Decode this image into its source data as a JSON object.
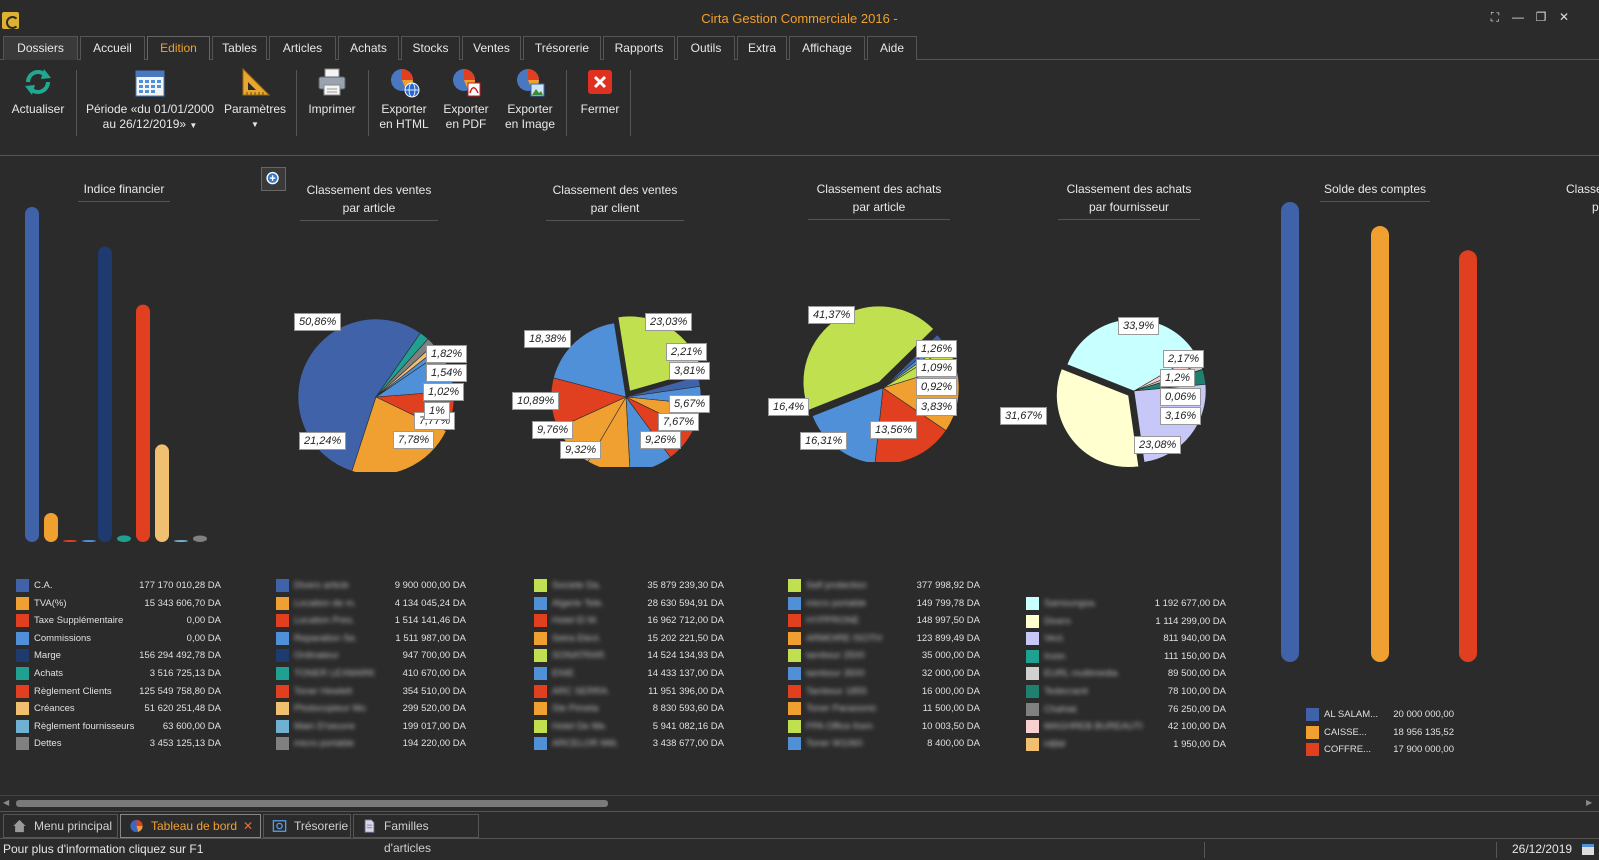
{
  "app": {
    "title": "Cirta Gestion Commerciale 2016 -",
    "window_buttons": [
      "⛶",
      "—",
      "❐",
      "✕"
    ]
  },
  "menu": {
    "tabs": [
      "Dossiers",
      "Accueil",
      "Edition",
      "Tables",
      "Articles",
      "Achats",
      "Stocks",
      "Ventes",
      "Trésorerie",
      "Rapports",
      "Outils",
      "Extra",
      "Affichage",
      "Aide"
    ],
    "active": "Edition"
  },
  "ribbon": {
    "actualiser": "Actualiser",
    "periode_1": "Période «du 01/01/2000",
    "periode_2": "au 26/12/2019»",
    "parametres": "Paramètres",
    "imprimer": "Imprimer",
    "export_html_1": "Exporter",
    "export_html_2": "en HTML",
    "export_pdf_1": "Exporter",
    "export_pdf_2": "en PDF",
    "export_img_1": "Exporter",
    "export_img_2": "en Image",
    "fermer": "Fermer"
  },
  "colors": {
    "blue": "#4062a8",
    "orange": "#f0a030",
    "red": "#e04020",
    "lightblue": "#5090d8",
    "navy": "#1e3a6e",
    "teal": "#20a090",
    "salmon": "#f0c070",
    "skyblue": "#70b0d0",
    "gray": "#808080",
    "lime": "#c0e050",
    "cyan": "#c8ffff",
    "cream": "#ffffd0",
    "lavender": "#c8c8f8",
    "pink": "#f8d0d0",
    "lightgray": "#d0d0d0",
    "darkteal": "#208070",
    "olive": "#a09060"
  },
  "charts": {
    "indice": {
      "title": "Indice financier",
      "items": [
        {
          "label": "C.A.",
          "value": "177 170 010,28 DA",
          "num": 177170010.28,
          "color": "#4062a8"
        },
        {
          "label": "TVA(%)",
          "value": "15 343 606,70 DA",
          "num": 15343606.7,
          "color": "#f0a030"
        },
        {
          "label": "Taxe Supplémentaire",
          "value": "0,00 DA",
          "num": 0,
          "color": "#e04020"
        },
        {
          "label": "Commissions",
          "value": "0,00 DA",
          "num": 0,
          "color": "#5090d8"
        },
        {
          "label": "Marge",
          "value": "156 294 492,78 DA",
          "num": 156294492.78,
          "color": "#1e3a6e"
        },
        {
          "label": "Achats",
          "value": "3 516 725,13 DA",
          "num": 3516725.13,
          "color": "#20a090"
        },
        {
          "label": "Règlement Clients",
          "value": "125 549 758,80 DA",
          "num": 125549758.8,
          "color": "#e04020"
        },
        {
          "label": "Créances",
          "value": "51 620 251,48 DA",
          "num": 51620251.48,
          "color": "#f0c070"
        },
        {
          "label": "Règlement fournisseurs",
          "value": "63 600,00 DA",
          "num": 63600,
          "color": "#70b0d0"
        },
        {
          "label": "Dettes",
          "value": "3 453 125,13 DA",
          "num": 3453125.13,
          "color": "#808080"
        }
      ]
    },
    "ventes_article": {
      "title_1": "Classement des ventes",
      "title_2": "par article",
      "legend": [
        {
          "label": "Divers article",
          "value": "9 900 000,00 DA",
          "color": "#4062a8"
        },
        {
          "label": "Location de m.",
          "value": "4 134 045,24 DA",
          "color": "#f0a030"
        },
        {
          "label": "Location Pres.",
          "value": "1 514 141,46 DA",
          "color": "#e04020"
        },
        {
          "label": "Reparation Se.",
          "value": "1 511 987,00 DA",
          "color": "#5090d8"
        },
        {
          "label": "Ordinateur",
          "value": "947 700,00 DA",
          "color": "#1e3a6e"
        },
        {
          "label": "TONER LEXMARK",
          "value": "410 670,00 DA",
          "color": "#20a090"
        },
        {
          "label": "Toner Hewlett",
          "value": "354 510,00 DA",
          "color": "#e04020"
        },
        {
          "label": "Photocopieur Mu",
          "value": "299 520,00 DA",
          "color": "#f0c070"
        },
        {
          "label": "Main D'oeuvre",
          "value": "199 017,00 DA",
          "color": "#70b0d0"
        },
        {
          "label": "micro portable",
          "value": "194 220,00 DA",
          "color": "#808080"
        }
      ],
      "pct": [
        "50,86%",
        "21,24%",
        "7,78%",
        "7,77%",
        "1,82%",
        "1,54%",
        "1,02%",
        "1%"
      ]
    },
    "ventes_client": {
      "title_1": "Classement des ventes",
      "title_2": "par client",
      "legend": [
        {
          "label": "Societe Da.",
          "value": "35 879 239,30 DA",
          "color": "#c0e050"
        },
        {
          "label": "Algerie Tele.",
          "value": "28 630 594,91 DA",
          "color": "#5090d8"
        },
        {
          "label": "Hotel El M.",
          "value": "16 962 712,00 DA",
          "color": "#e04020"
        },
        {
          "label": "Setra Elect.",
          "value": "15 202 221,50 DA",
          "color": "#f0a030"
        },
        {
          "label": "SONATRAR.",
          "value": "14 524 134,93 DA",
          "color": "#c0e050"
        },
        {
          "label": "ENIE",
          "value": "14 433 137,00 DA",
          "color": "#5090d8"
        },
        {
          "label": "ARC SERRA.",
          "value": "11 951 396,00 DA",
          "color": "#e04020"
        },
        {
          "label": "Ste Pimeta",
          "value": "8 830 593,60 DA",
          "color": "#f0a030"
        },
        {
          "label": "Hotel De Me.",
          "value": "5 941 082,16 DA",
          "color": "#c0e050"
        },
        {
          "label": "ARCELOR Mitt.",
          "value": "3 438 677,00 DA",
          "color": "#5090d8"
        }
      ],
      "pct": [
        "23,03%",
        "18,38%",
        "10,89%",
        "9,76%",
        "9,32%",
        "9,26%",
        "7,67%",
        "5,67%",
        "3,81%",
        "2,21%"
      ]
    },
    "achats_article": {
      "title_1": "Classement des achats",
      "title_2": "par article",
      "legend": [
        {
          "label": "Self protection",
          "value": "377 998,92 DA",
          "color": "#c0e050"
        },
        {
          "label": "micro portable",
          "value": "149 799,78 DA",
          "color": "#5090d8"
        },
        {
          "label": "HYPPRONE",
          "value": "148 997,50 DA",
          "color": "#e04020"
        },
        {
          "label": "ARMOIRE ISOTH",
          "value": "123 899,49 DA",
          "color": "#f0a030"
        },
        {
          "label": "tambour 2500",
          "value": "35 000,00 DA",
          "color": "#c0e050"
        },
        {
          "label": "tambour 3500",
          "value": "32 000,00 DA",
          "color": "#5090d8"
        },
        {
          "label": "Tambour 1855",
          "value": "16 000,00 DA",
          "color": "#e04020"
        },
        {
          "label": "Toner Panasonic",
          "value": "11 500,00 DA",
          "color": "#f0a030"
        },
        {
          "label": "FPA Office Kem",
          "value": "10 003,50 DA",
          "color": "#c0e050"
        },
        {
          "label": "Toner W1060",
          "value": "8 400,00 DA",
          "color": "#5090d8"
        }
      ],
      "pct": [
        "41,37%",
        "16,4%",
        "16,31%",
        "13,56%",
        "3,83%",
        "0,92%",
        "1,09%",
        "1,26%"
      ]
    },
    "achats_fournisseur": {
      "title_1": "Classement des achats",
      "title_2": "par fournisseur",
      "legend": [
        {
          "label": "Samsungsa.",
          "value": "1 192 677,00 DA",
          "color": "#c8ffff"
        },
        {
          "label": "Divers",
          "value": "1 114 299,00 DA",
          "color": "#ffffd0"
        },
        {
          "label": "Vect.",
          "value": "811 940,00 DA",
          "color": "#c8c8f8"
        },
        {
          "label": "Inzer.",
          "value": "111 150,00 DA",
          "color": "#20a090"
        },
        {
          "label": "EURL multimedia",
          "value": "89 500,00 DA",
          "color": "#d0d0d0"
        },
        {
          "label": "Tedecranit",
          "value": "78 100,00 DA",
          "color": "#208070"
        },
        {
          "label": "Chahial.",
          "value": "76 250,00 DA",
          "color": "#808080"
        },
        {
          "label": "MAGHREB BUREAUTI",
          "value": "42 100,00 DA",
          "color": "#f8d0d0"
        },
        {
          "label": "HBM",
          "value": "1 950,00 DA",
          "color": "#f0c070"
        }
      ],
      "pct": [
        "33,9%",
        "31,67%",
        "23,08%",
        "3,16%",
        "0,06%",
        "1,2%",
        "2,17%"
      ]
    },
    "solde": {
      "title": "Solde des comptes",
      "items": [
        {
          "label": "AL SALAM...",
          "value": "20 000 000,00",
          "num": 20000000,
          "color": "#4062a8"
        },
        {
          "label": "CAISSE...",
          "value": "18 956 135,52",
          "num": 18956135.52,
          "color": "#f0a030"
        },
        {
          "label": "COFFRE...",
          "value": "17 900 000,00",
          "num": 17900000,
          "color": "#e04020"
        }
      ]
    },
    "partial_title_1": "Classem",
    "partial_title_2": "p"
  },
  "doc_tabs": [
    "Menu principal",
    "Tableau de bord",
    "Trésorerie",
    "Familles d'articles"
  ],
  "status": {
    "hint": "Pour plus d'information cliquez sur F1",
    "date": "26/12/2019"
  }
}
